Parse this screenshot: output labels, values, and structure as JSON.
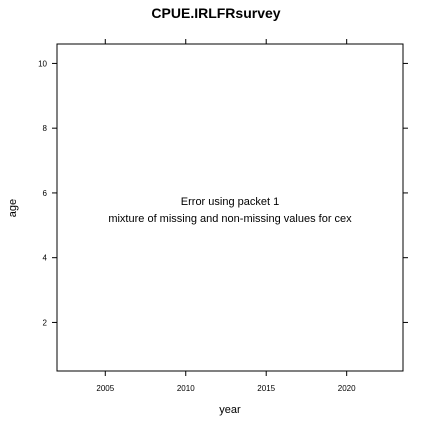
{
  "chart_data": {
    "type": "scatter",
    "title": "CPUE.IRLFRsurvey",
    "xlabel": "year",
    "ylabel": "age",
    "xlim": [
      2002,
      2023.5
    ],
    "ylim": [
      0.5,
      10.6
    ],
    "x_ticks": [
      2005,
      2010,
      2015,
      2020
    ],
    "y_ticks": [
      2,
      4,
      6,
      8,
      10
    ],
    "grid": false,
    "series": [],
    "messages": [
      "Error using packet 1",
      "mixture of missing and non-missing values for cex"
    ]
  }
}
